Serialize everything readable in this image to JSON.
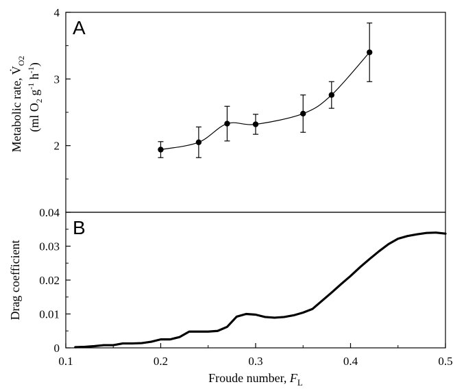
{
  "chart_data": [
    {
      "type": "line",
      "panel_label": "A",
      "ylabel": "Metabolic rate, V̇O2 (ml O2 g-1 h-1)",
      "ylim": [
        1,
        4
      ],
      "y_tick_labels": [
        "2",
        "3",
        "4"
      ],
      "series": [
        {
          "x": [
            0.2,
            0.24,
            0.27,
            0.3,
            0.35,
            0.38,
            0.42
          ],
          "y": [
            1.94,
            2.05,
            2.33,
            2.32,
            2.48,
            2.76,
            3.4
          ],
          "error": [
            0.12,
            0.23,
            0.26,
            0.15,
            0.28,
            0.2,
            0.44
          ]
        }
      ],
      "grid": false
    },
    {
      "type": "line",
      "panel_label": "B",
      "ylabel": "Drag coefficient",
      "xlabel": "Froude number, FL",
      "xlim": [
        0.1,
        0.5
      ],
      "ylim": [
        0,
        0.04
      ],
      "x_tick_labels": [
        "0.1",
        "0.2",
        "0.3",
        "0.4",
        "0.5"
      ],
      "y_tick_labels": [
        "0",
        "0.01",
        "0.02",
        "0.03",
        "0.04"
      ],
      "series": [
        {
          "x": [
            0.11,
            0.12,
            0.13,
            0.14,
            0.15,
            0.16,
            0.17,
            0.18,
            0.19,
            0.2,
            0.21,
            0.22,
            0.23,
            0.24,
            0.25,
            0.26,
            0.27,
            0.28,
            0.29,
            0.3,
            0.31,
            0.32,
            0.33,
            0.34,
            0.35,
            0.36,
            0.37,
            0.38,
            0.39,
            0.4,
            0.41,
            0.42,
            0.43,
            0.44,
            0.45,
            0.46,
            0.47,
            0.48,
            0.49,
            0.5
          ],
          "y": [
            0.0002,
            0.0003,
            0.0005,
            0.0008,
            0.0008,
            0.0013,
            0.0013,
            0.0014,
            0.0018,
            0.0025,
            0.0025,
            0.0032,
            0.0048,
            0.0048,
            0.0048,
            0.005,
            0.0062,
            0.0092,
            0.01,
            0.0098,
            0.0091,
            0.0089,
            0.0091,
            0.0096,
            0.0104,
            0.0115,
            0.0139,
            0.0163,
            0.0188,
            0.0212,
            0.0238,
            0.0262,
            0.0285,
            0.0306,
            0.0322,
            0.033,
            0.0335,
            0.0339,
            0.034,
            0.0337
          ]
        }
      ],
      "grid": false
    }
  ]
}
